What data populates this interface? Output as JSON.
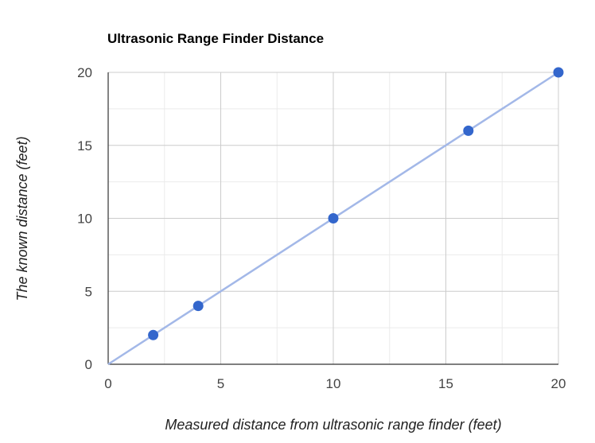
{
  "chart_data": {
    "type": "scatter",
    "title": "Ultrasonic Range Finder Distance",
    "xlabel": "Measured distance from ultrasonic range finder (feet)",
    "ylabel": "The known distance (feet)",
    "xlim": [
      0,
      20
    ],
    "ylim": [
      0,
      20
    ],
    "xticks": [
      "0",
      "5",
      "10",
      "15",
      "20"
    ],
    "yticks": [
      "0",
      "5",
      "10",
      "15",
      "20"
    ],
    "grid": true,
    "legend": "none",
    "points": [
      {
        "x": 2,
        "y": 2
      },
      {
        "x": 4,
        "y": 4
      },
      {
        "x": 10,
        "y": 10
      },
      {
        "x": 16,
        "y": 16
      },
      {
        "x": 20,
        "y": 20
      }
    ],
    "trendline": {
      "type": "linear",
      "from": [
        0,
        0
      ],
      "to": [
        20,
        20
      ]
    },
    "colors": {
      "point": "#3366cc",
      "trendline": "#a3b8e8",
      "gridline": "#cccccc",
      "minor_gridline": "#ebebeb",
      "axis": "#333333"
    }
  }
}
